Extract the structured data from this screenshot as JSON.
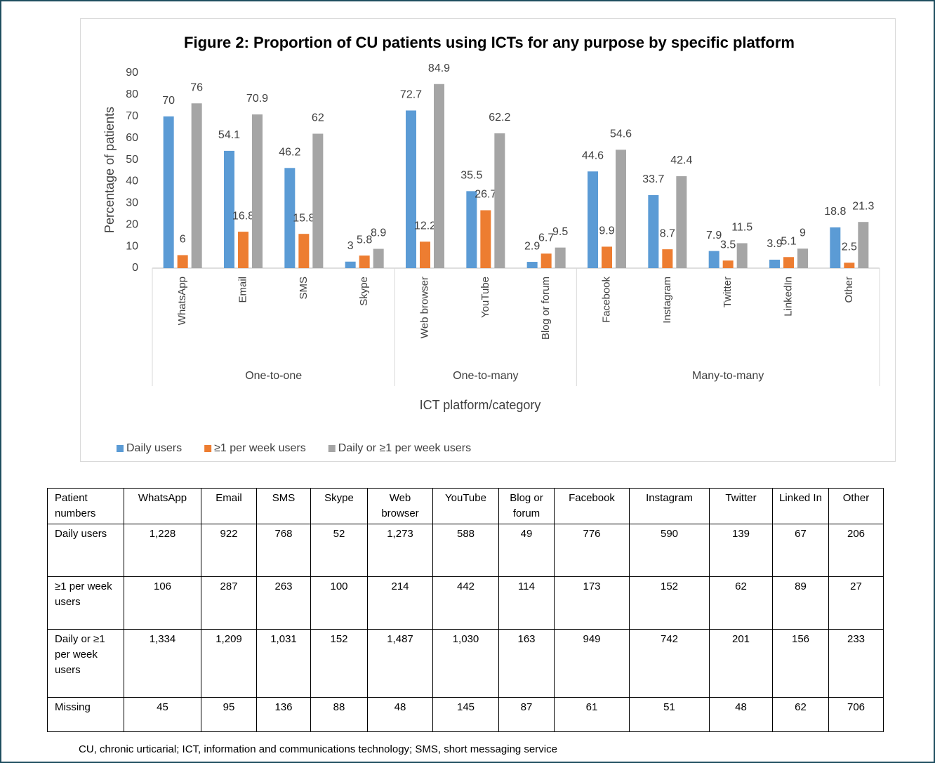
{
  "chart_data": {
    "type": "bar",
    "title": "Figure 2: Proportion of CU patients using ICTs for any purpose by specific platform",
    "y_label": "Percentage of patients",
    "x_label": "ICT platform/category",
    "categories": [
      "WhatsApp",
      "Email",
      "SMS",
      "Skype",
      "Web browser",
      "YouTube",
      "Blog or forum",
      "Facebook",
      "Instagram",
      "Twitter",
      "LinkedIn",
      "Other"
    ],
    "groups": [
      {
        "name": "One-to-one",
        "size": 4
      },
      {
        "name": "One-to-many",
        "size": 3
      },
      {
        "name": "Many-to-many",
        "size": 5
      }
    ],
    "series": [
      {
        "name": "Daily users",
        "color": "#5b9bd5",
        "values": [
          70,
          54.1,
          46.2,
          3,
          72.7,
          35.5,
          2.9,
          44.6,
          33.7,
          7.9,
          3.9,
          18.8
        ]
      },
      {
        "name": "≥1 per week users",
        "color": "#ed7d31",
        "values": [
          6,
          16.8,
          15.8,
          5.8,
          12.2,
          26.7,
          6.7,
          9.9,
          8.7,
          3.5,
          5.1,
          2.5
        ]
      },
      {
        "name": "Daily or ≥1 per week users",
        "color": "#a5a5a5",
        "values": [
          76,
          70.9,
          62,
          8.9,
          84.9,
          62.2,
          9.5,
          54.6,
          42.4,
          11.5,
          9,
          21.3
        ]
      }
    ],
    "ylim": [
      0,
      90
    ],
    "yticks": [
      0,
      10,
      20,
      30,
      40,
      50,
      60,
      70,
      80,
      90
    ],
    "grid": false,
    "legend": "bottom"
  },
  "table": {
    "header": [
      "Patient numbers",
      "WhatsApp",
      "Email",
      "SMS",
      "Skype",
      "Web browser",
      "YouTube",
      "Blog or forum",
      "Facebook",
      "Instagram",
      "Twitter",
      "Linked In",
      "Other"
    ],
    "rows": [
      [
        "Daily users",
        "1,228",
        "922",
        "768",
        "52",
        "1,273",
        "588",
        "49",
        "776",
        "590",
        "139",
        "67",
        "206"
      ],
      [
        "≥1 per week users",
        "106",
        "287",
        "263",
        "100",
        "214",
        "442",
        "114",
        "173",
        "152",
        "62",
        "89",
        "27"
      ],
      [
        "Daily or ≥1 per week users",
        "1,334",
        "1,209",
        "1,031",
        "152",
        "1,487",
        "1,030",
        "163",
        "949",
        "742",
        "201",
        "156",
        "233"
      ],
      [
        "Missing",
        "45",
        "95",
        "136",
        "88",
        "48",
        "145",
        "87",
        "61",
        "51",
        "48",
        "62",
        "706"
      ]
    ]
  },
  "footnote": "CU, chronic urticarial; ICT, information and communications technology; SMS, short messaging service"
}
